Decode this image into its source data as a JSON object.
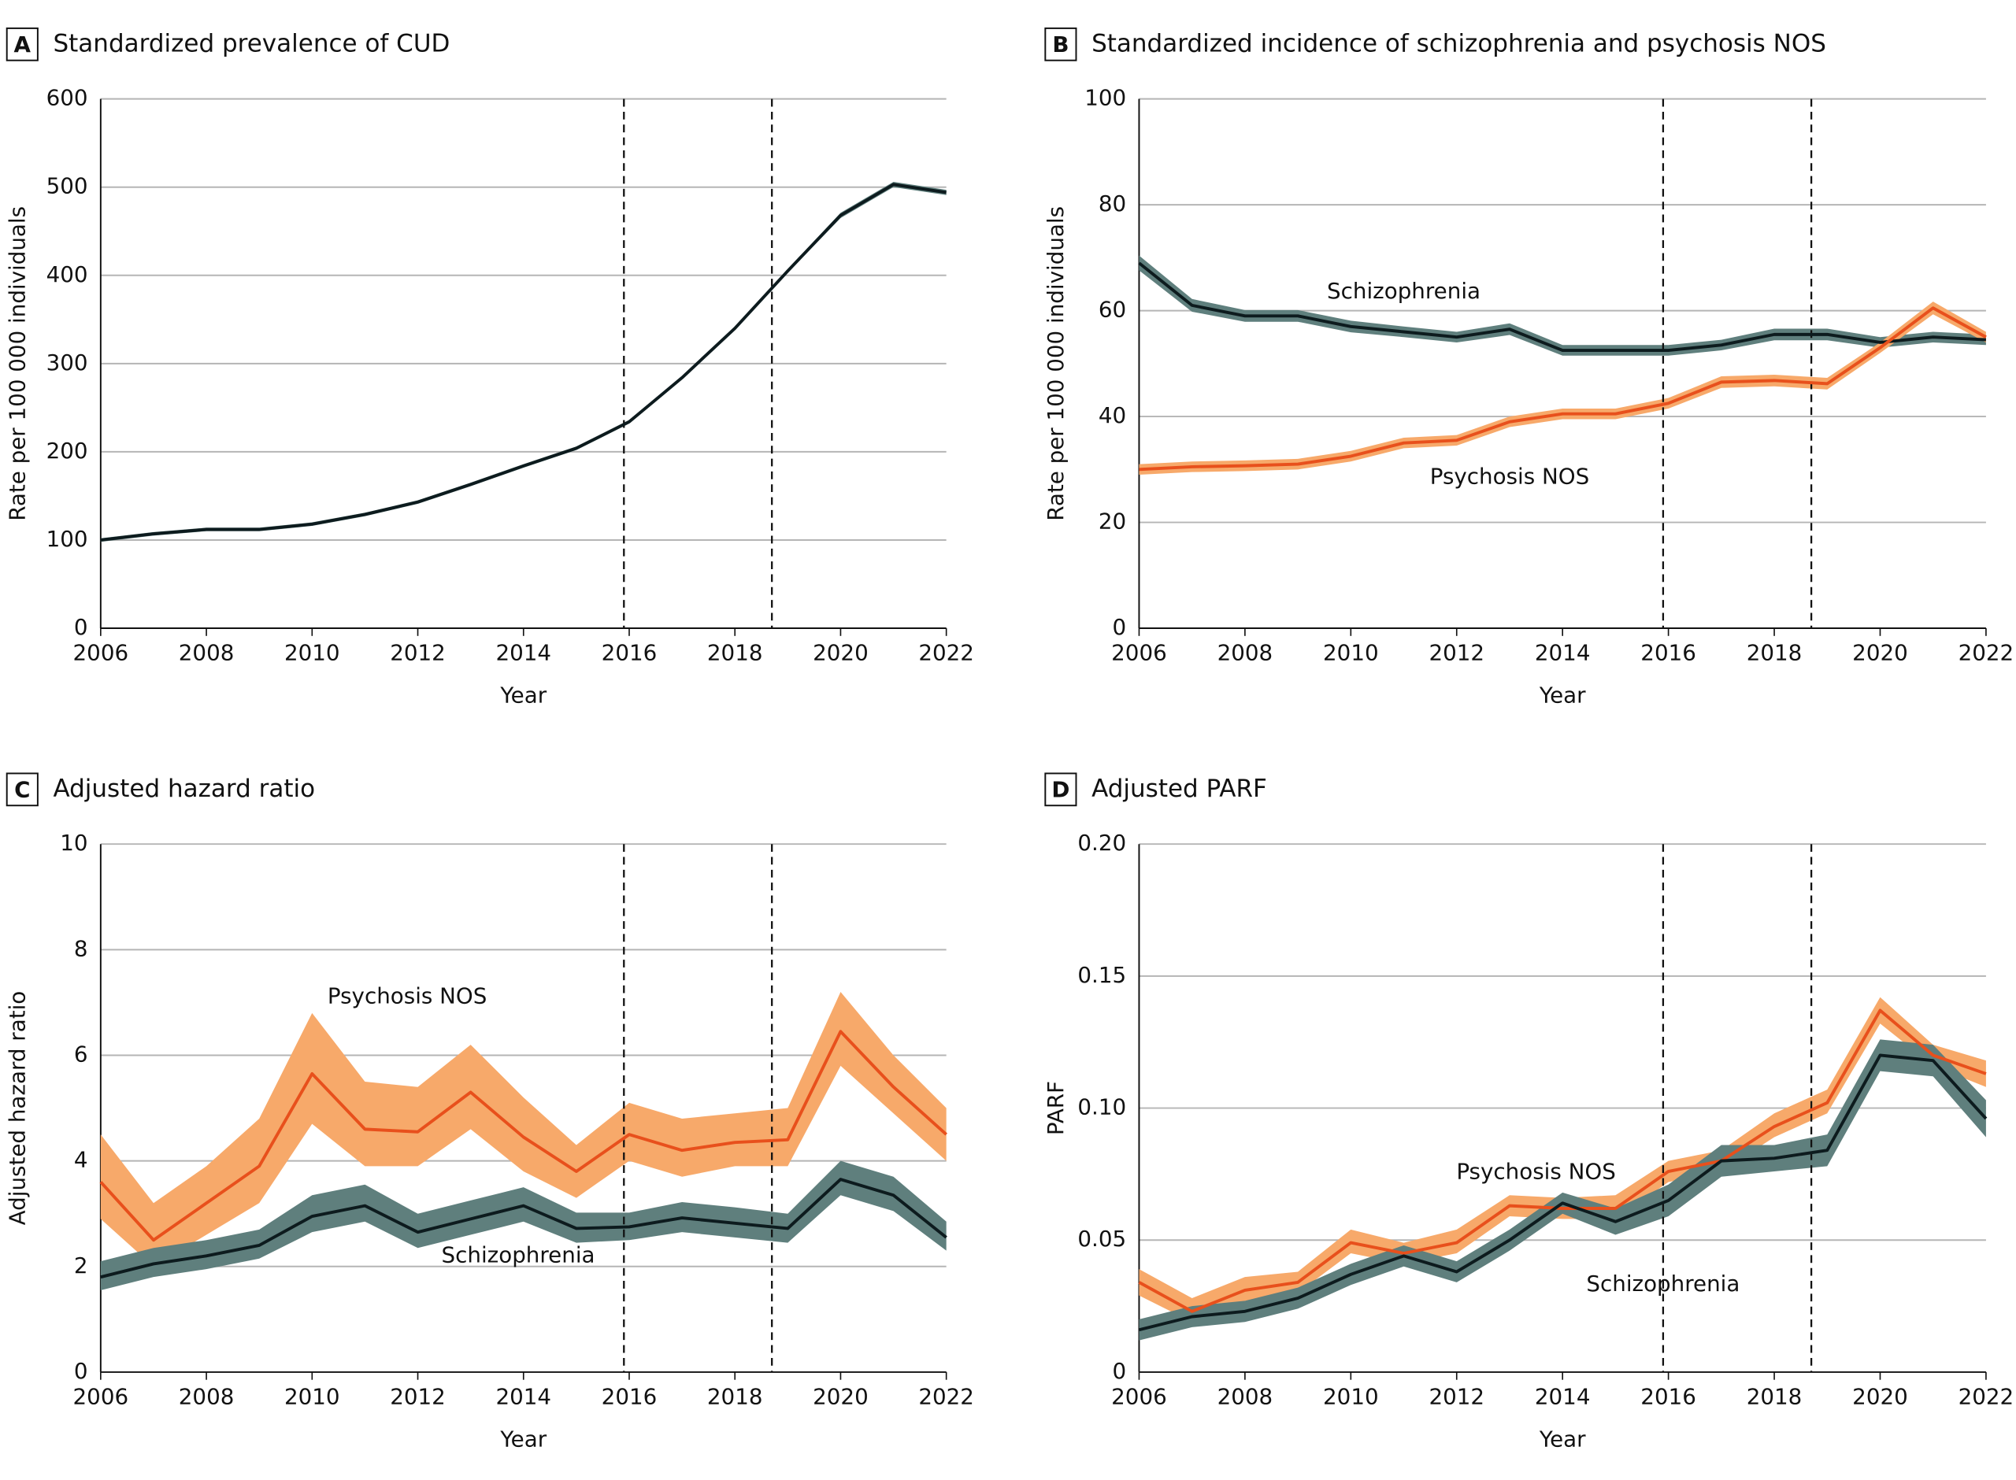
{
  "chart_data": [
    {
      "type": "line",
      "letter": "A",
      "title": "Standardized prevalence of CUD",
      "x_label": "Year",
      "y_label": "Rate per 100 000 individuals",
      "x": [
        2006,
        2007,
        2008,
        2009,
        2010,
        2011,
        2012,
        2013,
        2014,
        2015,
        2016,
        2017,
        2018,
        2019,
        2020,
        2021,
        2022
      ],
      "xlim": [
        2006,
        2022
      ],
      "xticks": [
        2006,
        2008,
        2010,
        2012,
        2014,
        2016,
        2018,
        2020,
        2022
      ],
      "ylim": [
        0,
        600
      ],
      "yticks": [
        0,
        100,
        200,
        300,
        400,
        500,
        600
      ],
      "grid": true,
      "vlines": [
        2015.9,
        2018.7
      ],
      "series": [
        {
          "color": "#0d1b1e",
          "band_color": "#5f7f7d",
          "values": [
            100,
            107,
            112,
            112,
            118,
            129,
            143,
            163,
            184,
            204,
            234,
            284,
            340,
            405,
            468,
            503,
            494
          ],
          "lower": [
            98,
            105,
            110,
            110,
            116,
            127,
            141,
            161,
            182,
            202,
            232,
            282,
            338,
            403,
            465,
            500,
            491
          ],
          "upper": [
            102,
            109,
            114,
            114,
            120,
            131,
            145,
            165,
            186,
            206,
            236,
            286,
            342,
            407,
            471,
            506,
            497
          ]
        }
      ]
    },
    {
      "type": "line",
      "letter": "B",
      "title": "Standardized incidence of schizophrenia and psychosis NOS",
      "x_label": "Year",
      "y_label": "Rate per 100 000 individuals",
      "x": [
        2006,
        2007,
        2008,
        2009,
        2010,
        2011,
        2012,
        2013,
        2014,
        2015,
        2016,
        2017,
        2018,
        2019,
        2020,
        2021,
        2022
      ],
      "xlim": [
        2006,
        2022
      ],
      "xticks": [
        2006,
        2008,
        2010,
        2012,
        2014,
        2016,
        2018,
        2020,
        2022
      ],
      "ylim": [
        0,
        100
      ],
      "yticks": [
        0,
        20,
        40,
        60,
        80,
        100
      ],
      "grid": true,
      "vlines": [
        2015.9,
        2018.7
      ],
      "series": [
        {
          "name": "Schizophrenia",
          "color": "#0d1b1e",
          "band_color": "#5f7f7d",
          "values": [
            69,
            61,
            59,
            59,
            57,
            56,
            55,
            56.5,
            52.5,
            52.5,
            52.5,
            53.5,
            55.5,
            55.5,
            54,
            55,
            54.5
          ],
          "lower": [
            67.6,
            59.8,
            57.9,
            57.9,
            55.9,
            55,
            54,
            55.4,
            51.5,
            51.5,
            51.5,
            52.5,
            54.4,
            54.4,
            53,
            54,
            53.5
          ],
          "upper": [
            70.4,
            62.2,
            60.1,
            60.1,
            58.1,
            57,
            56,
            57.6,
            53.5,
            53.5,
            53.5,
            54.5,
            56.6,
            56.6,
            55,
            56,
            55.5
          ]
        },
        {
          "name": "Psychosis NOS",
          "color": "#e8501c",
          "band_color": "#f7a96a",
          "values": [
            30,
            30.5,
            30.7,
            31,
            32.5,
            35,
            35.5,
            39,
            40.5,
            40.5,
            42.5,
            46.5,
            46.8,
            46.2,
            53,
            60.5,
            55
          ],
          "lower": [
            29,
            29.5,
            29.7,
            30,
            31.5,
            34,
            34.5,
            38,
            39.5,
            39.5,
            41.5,
            45.4,
            45.7,
            45.1,
            52,
            59.3,
            54
          ],
          "upper": [
            31,
            31.5,
            31.7,
            32,
            33.5,
            36,
            36.5,
            40,
            41.5,
            41.5,
            43.5,
            47.6,
            47.9,
            47.3,
            54,
            61.7,
            56
          ]
        }
      ]
    },
    {
      "type": "line",
      "letter": "C",
      "title": "Adjusted hazard ratio",
      "x_label": "Year",
      "y_label": "Adjusted hazard ratio",
      "x": [
        2006,
        2007,
        2008,
        2009,
        2010,
        2011,
        2012,
        2013,
        2014,
        2015,
        2016,
        2017,
        2018,
        2019,
        2020,
        2021,
        2022
      ],
      "xlim": [
        2006,
        2022
      ],
      "xticks": [
        2006,
        2008,
        2010,
        2012,
        2014,
        2016,
        2018,
        2020,
        2022
      ],
      "ylim": [
        0,
        10
      ],
      "yticks": [
        0,
        2,
        4,
        6,
        8,
        10
      ],
      "grid": true,
      "vlines": [
        2015.9,
        2018.7
      ],
      "series": [
        {
          "name": "Psychosis NOS",
          "color": "#e8501c",
          "band_color": "#f7a96a",
          "values": [
            3.6,
            2.5,
            3.2,
            3.9,
            5.65,
            4.6,
            4.55,
            5.3,
            4.45,
            3.8,
            4.5,
            4.2,
            4.35,
            4.4,
            6.45,
            5.4,
            4.5
          ],
          "lower": [
            2.9,
            2.0,
            2.6,
            3.2,
            4.7,
            3.9,
            3.9,
            4.6,
            3.8,
            3.3,
            4.0,
            3.7,
            3.9,
            3.9,
            5.8,
            4.9,
            4.0
          ],
          "upper": [
            4.5,
            3.2,
            3.9,
            4.8,
            6.8,
            5.5,
            5.4,
            6.2,
            5.2,
            4.3,
            5.1,
            4.8,
            4.9,
            5.0,
            7.2,
            6.0,
            5.0
          ]
        },
        {
          "name": "Schizophrenia",
          "color": "#0d1b1e",
          "band_color": "#5f7f7d",
          "values": [
            1.8,
            2.05,
            2.2,
            2.4,
            2.95,
            3.15,
            2.65,
            2.9,
            3.15,
            2.72,
            2.75,
            2.92,
            2.82,
            2.72,
            3.65,
            3.35,
            2.55
          ],
          "lower": [
            1.55,
            1.8,
            1.95,
            2.15,
            2.65,
            2.85,
            2.35,
            2.6,
            2.85,
            2.45,
            2.5,
            2.65,
            2.55,
            2.45,
            3.35,
            3.05,
            2.3
          ],
          "upper": [
            2.1,
            2.35,
            2.5,
            2.7,
            3.35,
            3.55,
            3.0,
            3.25,
            3.5,
            3.02,
            3.02,
            3.22,
            3.12,
            3.0,
            4.0,
            3.7,
            2.85
          ]
        }
      ]
    },
    {
      "type": "line",
      "letter": "D",
      "title": "Adjusted PARF",
      "x_label": "Year",
      "y_label": "PARF",
      "x": [
        2006,
        2007,
        2008,
        2009,
        2010,
        2011,
        2012,
        2013,
        2014,
        2015,
        2016,
        2017,
        2018,
        2019,
        2020,
        2021,
        2022
      ],
      "xlim": [
        2006,
        2022
      ],
      "xticks": [
        2006,
        2008,
        2010,
        2012,
        2014,
        2016,
        2018,
        2020,
        2022
      ],
      "ylim": [
        0,
        0.2
      ],
      "yticks": [
        0,
        0.05,
        {
          "value": 0.1,
          "label": "0.10"
        },
        0.15,
        {
          "value": 0.2,
          "label": "0.20"
        }
      ],
      "grid": true,
      "vlines": [
        2015.9,
        2018.7
      ],
      "series": [
        {
          "name": "Psychosis NOS",
          "color": "#e8501c",
          "band_color": "#f7a96a",
          "values": [
            0.034,
            0.023,
            0.031,
            0.034,
            0.049,
            0.045,
            0.049,
            0.063,
            0.062,
            0.062,
            0.076,
            0.08,
            0.093,
            0.102,
            0.137,
            0.12,
            0.113
          ],
          "lower": [
            0.029,
            0.019,
            0.027,
            0.03,
            0.045,
            0.041,
            0.045,
            0.059,
            0.058,
            0.058,
            0.072,
            0.076,
            0.089,
            0.098,
            0.132,
            0.116,
            0.108
          ],
          "upper": [
            0.039,
            0.028,
            0.036,
            0.038,
            0.054,
            0.049,
            0.054,
            0.067,
            0.066,
            0.067,
            0.08,
            0.084,
            0.098,
            0.107,
            0.142,
            0.124,
            0.118
          ]
        },
        {
          "name": "Schizophrenia",
          "color": "#0d1b1e",
          "band_color": "#5f7f7d",
          "values": [
            0.016,
            0.021,
            0.023,
            0.028,
            0.037,
            0.044,
            0.038,
            0.05,
            0.064,
            0.057,
            0.065,
            0.08,
            0.081,
            0.084,
            0.12,
            0.118,
            0.096
          ],
          "lower": [
            0.012,
            0.017,
            0.019,
            0.024,
            0.033,
            0.04,
            0.034,
            0.046,
            0.06,
            0.052,
            0.059,
            0.074,
            0.076,
            0.078,
            0.114,
            0.112,
            0.089
          ],
          "upper": [
            0.02,
            0.025,
            0.027,
            0.032,
            0.041,
            0.048,
            0.042,
            0.054,
            0.068,
            0.062,
            0.071,
            0.086,
            0.086,
            0.09,
            0.126,
            0.124,
            0.103
          ]
        }
      ]
    }
  ]
}
